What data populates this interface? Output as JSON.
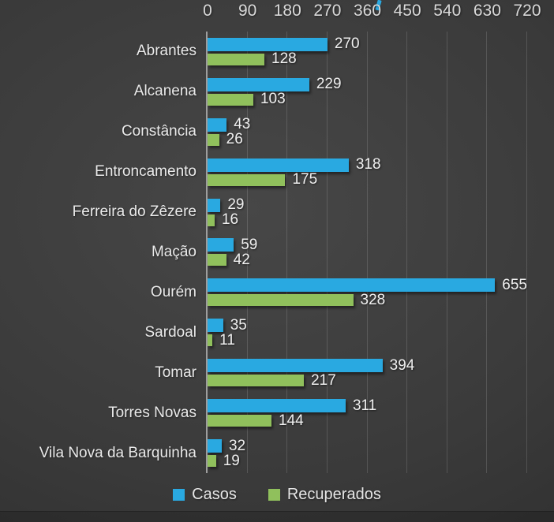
{
  "chart_data": {
    "type": "bar",
    "orientation": "horizontal",
    "title": "",
    "categories": [
      "Abrantes",
      "Alcanena",
      "Constância",
      "Entroncamento",
      "Ferreira do Zêzere",
      "Mação",
      "Ourém",
      "Sardoal",
      "Tomar",
      "Torres Novas",
      "Vila Nova da Barquinha"
    ],
    "series": [
      {
        "name": "Casos",
        "color": "#29a9e1",
        "values": [
          270,
          229,
          43,
          318,
          29,
          59,
          655,
          35,
          394,
          311,
          32
        ]
      },
      {
        "name": "Recuperados",
        "color": "#90c05c",
        "values": [
          128,
          103,
          26,
          175,
          16,
          42,
          328,
          11,
          217,
          144,
          19
        ]
      }
    ],
    "xlim": [
      0,
      720
    ],
    "x_ticks": [
      0,
      90,
      180,
      270,
      360,
      450,
      540,
      630,
      720
    ],
    "grid": "vertical",
    "legend_position": "bottom",
    "value_labels": true
  },
  "colors": {
    "background_center": "#474747",
    "background_edge": "#282828",
    "text": "#eaeaea",
    "tick_text": "#d9d9d9",
    "gridline_alpha": "rgba(255,255,255,0.14)",
    "axis_line": "#9e9e9e",
    "casos": "#29a9e1",
    "recuperados": "#90c05c"
  }
}
